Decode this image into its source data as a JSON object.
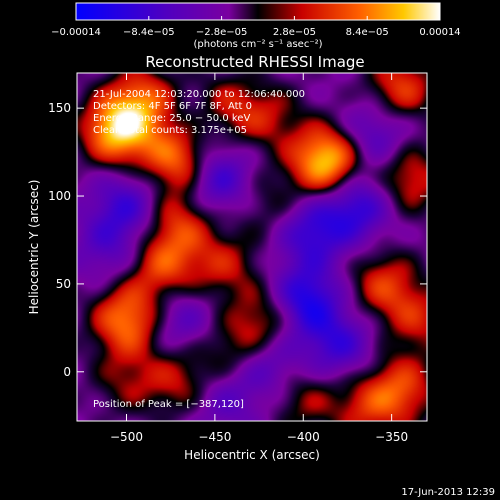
{
  "chart_data": {
    "type": "heatmap",
    "title": "Reconstructed RHESSI Image",
    "xlabel": "Heliocentric X (arcsec)",
    "ylabel": "Heliocentric Y (arcsec)",
    "xlim": [
      -528,
      -330
    ],
    "ylim": [
      -28,
      170
    ],
    "x_ticks": [
      -500,
      -450,
      -400,
      -350
    ],
    "x_tick_labels": [
      "−500",
      "−450",
      "−400",
      "−350"
    ],
    "y_ticks": [
      0,
      50,
      100,
      150
    ],
    "y_tick_labels": [
      "0",
      "50",
      "100",
      "150"
    ],
    "colorbar": {
      "range": [
        -0.00014,
        0.00014
      ],
      "ticks": [
        -0.00014,
        -8.4e-05,
        -2.8e-05,
        2.8e-05,
        8.4e-05,
        0.00014
      ],
      "tick_labels": [
        "−0.00014",
        "−8.4e−05",
        "−2.8e−05",
        "2.8e−05",
        "8.4e−05",
        "0.00014"
      ],
      "unit_label": "(photons cm⁻² s⁻¹ asec⁻²)",
      "colormap": "IDL Red-Temperature (blue→purple→red→yellow→white)"
    },
    "annotations": [
      "21-Jul-2004 12:03:20.000 to 12:06:40.000",
      "Detectors: 4F 5F 6F 7F 8F, Att 0",
      "Energy Range: 25.0 − 50.0 keV",
      "Clean     Total counts: 3.175e+05"
    ],
    "peak": {
      "label": "Position of Peak = [−387,120]",
      "x": -387,
      "y": 120
    },
    "blobs": [
      {
        "x": -387,
        "y": 120,
        "v": 1.0
      },
      {
        "x": -505,
        "y": 138,
        "v": 0.95
      },
      {
        "x": -470,
        "y": 122,
        "v": 0.8
      },
      {
        "x": -490,
        "y": 155,
        "v": 0.55
      },
      {
        "x": -445,
        "y": 150,
        "v": 0.45
      },
      {
        "x": -420,
        "y": 145,
        "v": 0.35
      },
      {
        "x": -345,
        "y": 162,
        "v": 0.55
      },
      {
        "x": -340,
        "y": 110,
        "v": 0.5
      },
      {
        "x": -480,
        "y": 60,
        "v": 0.55
      },
      {
        "x": -500,
        "y": 30,
        "v": 0.75
      },
      {
        "x": -470,
        "y": 85,
        "v": 0.5
      },
      {
        "x": -445,
        "y": 60,
        "v": 0.4
      },
      {
        "x": -420,
        "y": 30,
        "v": 0.5
      },
      {
        "x": -440,
        "y": 12,
        "v": 0.35
      },
      {
        "x": -470,
        "y": -5,
        "v": 0.4
      },
      {
        "x": -500,
        "y": -5,
        "v": 0.3
      },
      {
        "x": -355,
        "y": 50,
        "v": 0.5
      },
      {
        "x": -335,
        "y": 30,
        "v": 0.4
      },
      {
        "x": -345,
        "y": -10,
        "v": 0.55
      },
      {
        "x": -365,
        "y": -20,
        "v": 0.4
      },
      {
        "x": -400,
        "y": -15,
        "v": 0.35
      },
      {
        "x": -420,
        "y": 95,
        "v": 0.25
      },
      {
        "x": -395,
        "y": 80,
        "v": -0.5
      },
      {
        "x": -400,
        "y": 40,
        "v": -0.7
      },
      {
        "x": -450,
        "y": 110,
        "v": -0.55
      },
      {
        "x": -370,
        "y": 95,
        "v": -0.55
      },
      {
        "x": -420,
        "y": 5,
        "v": -0.4
      },
      {
        "x": -500,
        "y": 95,
        "v": -0.45
      },
      {
        "x": -360,
        "y": 135,
        "v": -0.4
      },
      {
        "x": -380,
        "y": 15,
        "v": -0.45
      },
      {
        "x": -470,
        "y": 30,
        "v": -0.35
      },
      {
        "x": -510,
        "y": 70,
        "v": -0.3
      },
      {
        "x": -445,
        "y": -15,
        "v": -0.3
      },
      {
        "x": -460,
        "y": 140,
        "v": -0.3
      }
    ]
  },
  "timestamp": "17-Jun-2013 12:39"
}
